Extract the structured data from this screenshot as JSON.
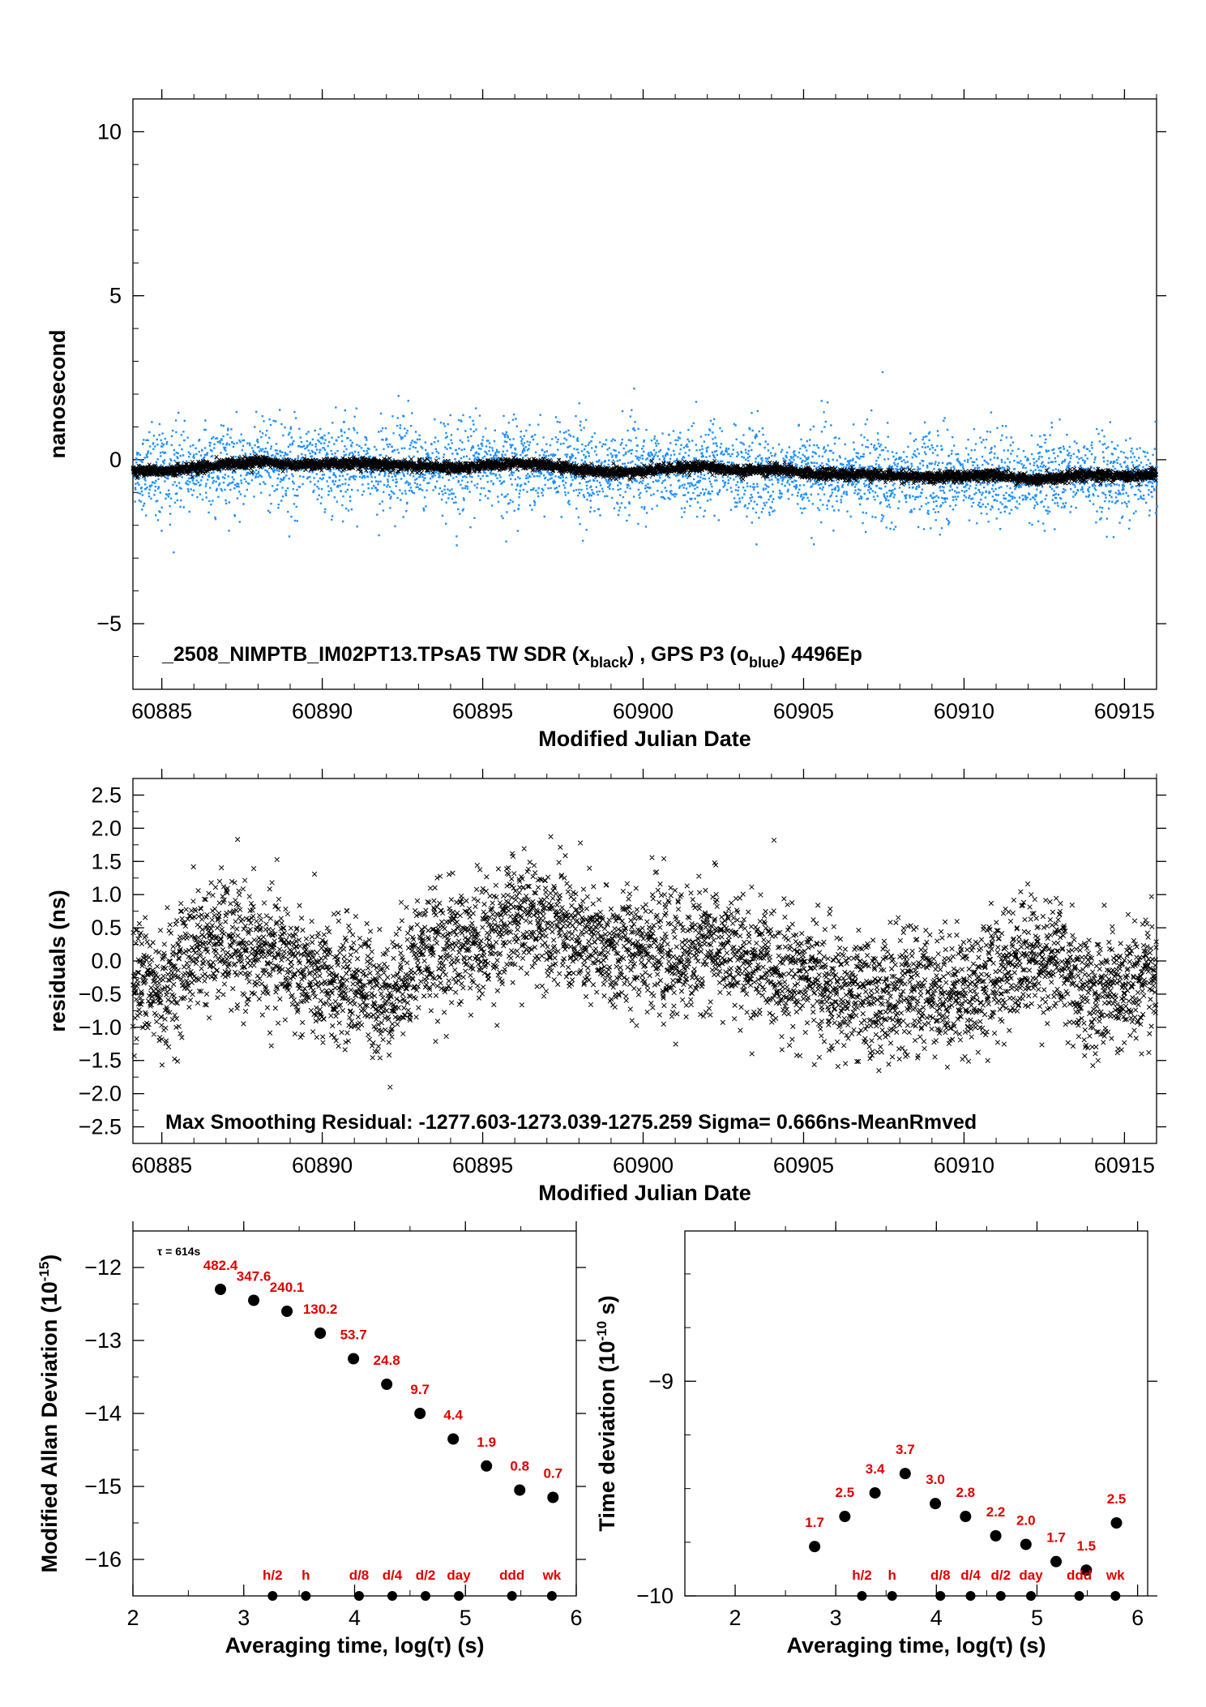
{
  "chart_data": [
    {
      "type": "scatter",
      "xlabel": "Modified Julian Date",
      "ylabel": "nanosecond",
      "xlim": [
        60884.1,
        60916.0
      ],
      "ylim": [
        -7,
        11
      ],
      "xticks": [
        "60885",
        "60890",
        "60895",
        "60900",
        "60905",
        "60910",
        "60915"
      ],
      "yticks": [
        "−5",
        "0",
        "5",
        "10"
      ],
      "annotation": {
        "pre": "_2508_NIMPTB_IM02PT13.TPsA5     TW SDR (x",
        "sub1": "black",
        "mid": ") ,  GPS P3 (o",
        "sub2": "blue",
        "post": ")  4496Ep"
      },
      "series_style": [
        {
          "marker": "x",
          "color": "#000000"
        },
        {
          "marker": "o",
          "color": "#1e90ff"
        }
      ],
      "trend_x": [
        60884.1,
        60885,
        60886,
        60887,
        60888,
        60889,
        60890,
        60891,
        60892,
        60893,
        60894,
        60895,
        60896,
        60897,
        60898,
        60899,
        60900,
        60901,
        60902,
        60903,
        60904,
        60905,
        60906,
        60907,
        60908,
        60909,
        60910,
        60911,
        60912,
        60913,
        60914,
        60915,
        60916
      ],
      "trend_y": [
        -0.35,
        -0.35,
        -0.25,
        -0.15,
        -0.05,
        -0.15,
        -0.15,
        -0.1,
        -0.15,
        -0.2,
        -0.25,
        -0.2,
        -0.1,
        -0.15,
        -0.3,
        -0.4,
        -0.35,
        -0.25,
        -0.2,
        -0.35,
        -0.3,
        -0.4,
        -0.45,
        -0.45,
        -0.5,
        -0.55,
        -0.5,
        -0.45,
        -0.6,
        -0.55,
        -0.45,
        -0.5,
        -0.45
      ],
      "black_scatter_sigma": 0.08,
      "blue_scatter_sigma": 0.65,
      "points_per_day": 141
    },
    {
      "type": "scatter",
      "xlabel": "Modified Julian Date",
      "ylabel": "residuals (ns)",
      "xlim": [
        60884.1,
        60916.0
      ],
      "ylim": [
        -2.75,
        2.75
      ],
      "xticks": [
        "60885",
        "60890",
        "60895",
        "60900",
        "60905",
        "60910",
        "60915"
      ],
      "yticks": [
        "−2.5",
        "−2.0",
        "−1.5",
        "−1.0",
        "−0.5",
        "0.0",
        "0.5",
        "1.0",
        "1.5",
        "2.0",
        "2.5"
      ],
      "annotation": "Max Smoothing Residual: -1277.603-1273.039-1275.259  Sigma= 0.666ns-MeanRmved",
      "sigma_ns": 0.666,
      "marker": "x",
      "color": "#000000",
      "trend_x": [
        60884.1,
        60885,
        60886,
        60887,
        60888,
        60889,
        60890,
        60891,
        60892,
        60893,
        60894,
        60895,
        60896,
        60897,
        60898,
        60899,
        60900,
        60901,
        60902,
        60903,
        60904,
        60905,
        60906,
        60907,
        60908,
        60909,
        60910,
        60911,
        60912,
        60913,
        60914,
        60915,
        60916
      ],
      "trend_y": [
        -0.2,
        -0.5,
        0.2,
        0.3,
        0.1,
        0.0,
        -0.4,
        -0.3,
        -0.6,
        0.1,
        0.2,
        0.3,
        0.6,
        0.7,
        0.3,
        0.1,
        0.3,
        0.0,
        0.3,
        0.0,
        -0.1,
        -0.2,
        -0.5,
        -0.6,
        -0.5,
        -0.4,
        -0.5,
        -0.2,
        0.1,
        0.0,
        -0.6,
        -0.4,
        -0.3
      ],
      "points_per_day": 141
    },
    {
      "type": "scatter",
      "xlabel": "Averaging time, log(τ) (s)",
      "ylabel": "Modified Allan Deviation (10",
      "ylabel_sup": "-15",
      "ylabel_end": ")",
      "xlim": [
        2,
        6
      ],
      "ylim": [
        -16.5,
        -11.5
      ],
      "xticks": [
        "2",
        "3",
        "4",
        "5",
        "6"
      ],
      "yticks": [
        "−16",
        "−15",
        "−14",
        "−13",
        "−12"
      ],
      "tau_label": "τ = 614s",
      "x": [
        2.79,
        3.09,
        3.39,
        3.69,
        3.99,
        4.29,
        4.59,
        4.89,
        5.19,
        5.49,
        5.79
      ],
      "y": [
        -12.3,
        -12.45,
        -12.6,
        -12.9,
        -13.25,
        -13.6,
        -14.0,
        -14.35,
        -14.72,
        -15.05,
        -15.15
      ],
      "point_labels": [
        "482.4",
        "347.6",
        "240.1",
        "130.2",
        "53.7",
        "24.8",
        "9.7",
        "4.4",
        "1.9",
        "0.8",
        "0.7"
      ],
      "markers": {
        "x": [
          3.26,
          3.56,
          4.04,
          4.34,
          4.64,
          4.94,
          5.42,
          5.78
        ],
        "labels": [
          "h/2",
          "h",
          "d/8",
          "d/4",
          "d/2",
          "day",
          "ddd",
          "wk"
        ]
      }
    },
    {
      "type": "scatter",
      "xlabel": "Averaging time, log(τ) (s)",
      "ylabel": "Time deviation (10",
      "ylabel_sup": "-10",
      "ylabel_end": " s)",
      "xlim": [
        1.5,
        6.1
      ],
      "ylim": [
        -10.0,
        -8.3
      ],
      "xticks": [
        "2",
        "3",
        "4",
        "5",
        "6"
      ],
      "yticks": [
        "−10",
        "−9"
      ],
      "x": [
        2.79,
        3.09,
        3.39,
        3.69,
        3.99,
        4.29,
        4.59,
        4.89,
        5.19,
        5.49,
        5.79
      ],
      "y": [
        -9.77,
        -9.63,
        -9.52,
        -9.43,
        -9.57,
        -9.63,
        -9.72,
        -9.76,
        -9.84,
        -9.88,
        -9.66
      ],
      "point_labels": [
        "1.7",
        "2.5",
        "3.4",
        "3.7",
        "3.0",
        "2.8",
        "2.2",
        "2.0",
        "1.7",
        "1.5",
        "2.5"
      ],
      "markers": {
        "x": [
          3.26,
          3.56,
          4.04,
          4.34,
          4.64,
          4.94,
          5.42,
          5.78
        ],
        "labels": [
          "h/2",
          "h",
          "d/8",
          "d/4",
          "d/2",
          "day",
          "ddd",
          "wk"
        ]
      }
    }
  ]
}
